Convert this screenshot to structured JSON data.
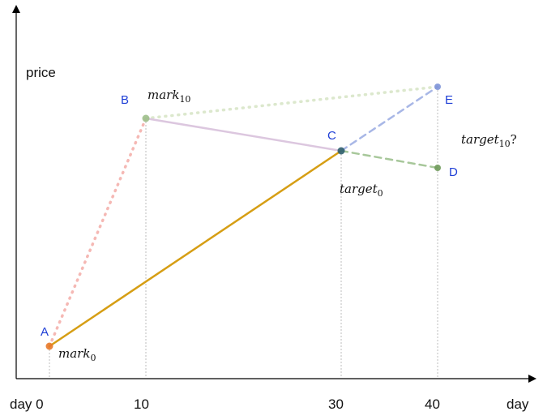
{
  "axes": {
    "y_label": "price",
    "x_label": "day",
    "x_ticks": [
      {
        "value": 0,
        "label": "day 0"
      },
      {
        "value": 10,
        "label": "10"
      },
      {
        "value": 30,
        "label": "30"
      },
      {
        "value": 40,
        "label": "40"
      }
    ]
  },
  "points": [
    {
      "id": "A",
      "label": "A",
      "day": 0,
      "color": "#e8792a"
    },
    {
      "id": "B",
      "label": "B",
      "day": 10,
      "color": "#9dbf8a"
    },
    {
      "id": "C",
      "label": "C",
      "day": 30,
      "color": "#2f5e6e"
    },
    {
      "id": "D",
      "label": "D",
      "day": 40,
      "color": "#6f9a5a"
    },
    {
      "id": "E",
      "label": "E",
      "day": 40,
      "color": "#7f95d8"
    }
  ],
  "segments": [
    {
      "from": "A",
      "to": "B",
      "style": "dotted",
      "color": "#f5b8b4"
    },
    {
      "from": "B",
      "to": "E",
      "style": "dotted",
      "color": "#dce8cd"
    },
    {
      "from": "B",
      "to": "C",
      "style": "solid",
      "color": "#dcc7df"
    },
    {
      "from": "A",
      "to": "C",
      "style": "solid",
      "color": "#d69e14"
    },
    {
      "from": "C",
      "to": "E",
      "style": "dashed",
      "color": "#a8b7e6"
    },
    {
      "from": "C",
      "to": "D",
      "style": "dashed",
      "color": "#a7c79a"
    }
  ],
  "annotations": {
    "mark_0": {
      "base": "mark",
      "sub": "0",
      "suffix": ""
    },
    "mark_10": {
      "base": "mark",
      "sub": "10",
      "suffix": ""
    },
    "target_0": {
      "base": "target",
      "sub": "0",
      "suffix": ""
    },
    "target_10": {
      "base": "target",
      "sub": "10",
      "suffix": "?"
    }
  }
}
